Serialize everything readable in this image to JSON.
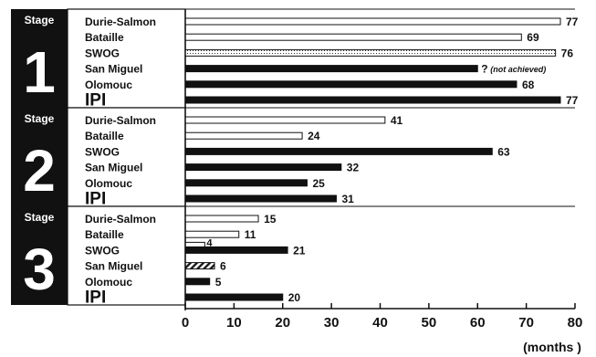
{
  "chart_data": {
    "type": "bar",
    "orientation": "horizontal",
    "xlabel": "(months )",
    "xlim": [
      0,
      80
    ],
    "xticks": [
      "0",
      "10",
      "20",
      "30",
      "40",
      "50",
      "60",
      "70",
      "80"
    ],
    "grid": false,
    "stage_label": "Stage",
    "note": "(not achieved)",
    "question_mark": "?",
    "stages": [
      {
        "number": "1",
        "categories": [
          "Durie-Salmon",
          "Bataille",
          "SWOG",
          "San Miguel",
          "Olomouc",
          "IPI"
        ],
        "values": [
          77,
          69,
          76,
          60,
          68,
          77
        ],
        "labels": [
          "77",
          "69",
          "76",
          "",
          "68",
          "77"
        ],
        "fills": [
          "white",
          "white",
          "dotted",
          "black",
          "black",
          "black"
        ]
      },
      {
        "number": "2",
        "categories": [
          "Durie-Salmon",
          "Bataille",
          "SWOG",
          "San Miguel",
          "Olomouc",
          "IPI"
        ],
        "values": [
          41,
          24,
          63,
          32,
          25,
          31
        ],
        "labels": [
          "41",
          "24",
          "63",
          "32",
          "25",
          "31"
        ],
        "fills": [
          "white",
          "white",
          "black",
          "black",
          "black",
          "black"
        ]
      },
      {
        "number": "3",
        "categories": [
          "Durie-Salmon",
          "Bataille",
          "SWOG",
          "San Miguel",
          "Olomouc",
          "IPI"
        ],
        "values": [
          15,
          11,
          21,
          6,
          5,
          20
        ],
        "labels": [
          "15",
          "11",
          "21",
          "6",
          "5",
          "20"
        ],
        "fills": [
          "white",
          "white",
          "black",
          "hatched",
          "black",
          "black"
        ],
        "extra_bars": [
          {
            "row": 2,
            "value": 4,
            "label": "4",
            "fill": "white"
          }
        ]
      }
    ]
  }
}
